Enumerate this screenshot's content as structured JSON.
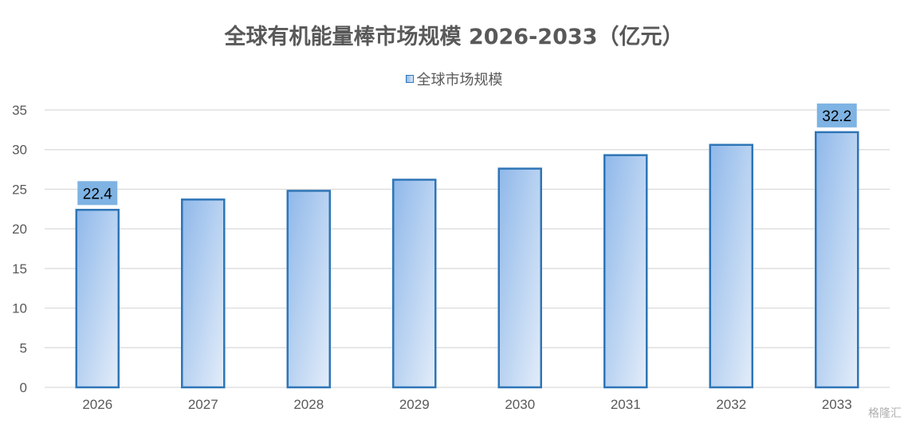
{
  "chart_data": {
    "type": "bar",
    "title": "全球有机能量棒市场规模 2026-2033（亿元）",
    "categories": [
      "2026",
      "2027",
      "2028",
      "2029",
      "2030",
      "2031",
      "2032",
      "2033"
    ],
    "series": [
      {
        "name": "全球市场规模",
        "values": [
          22.4,
          23.7,
          24.8,
          26.2,
          27.6,
          29.3,
          30.6,
          32.2
        ]
      }
    ],
    "data_labels": {
      "2026": "22.4",
      "2033": "32.2"
    },
    "ylim": [
      0,
      35
    ],
    "yticks": [
      "0",
      "5",
      "10",
      "15",
      "20",
      "25",
      "30",
      "35"
    ],
    "grid": true,
    "legend_position": "top-center"
  },
  "watermark": "格隆汇",
  "colors": {
    "bar_border": "#2e75b6",
    "bar_fill_start": "#8fb8ea",
    "bar_fill_end": "#dde9f7",
    "label_bg": "#7eb3e3",
    "grid": "#d9d9d9",
    "text": "#595959"
  }
}
